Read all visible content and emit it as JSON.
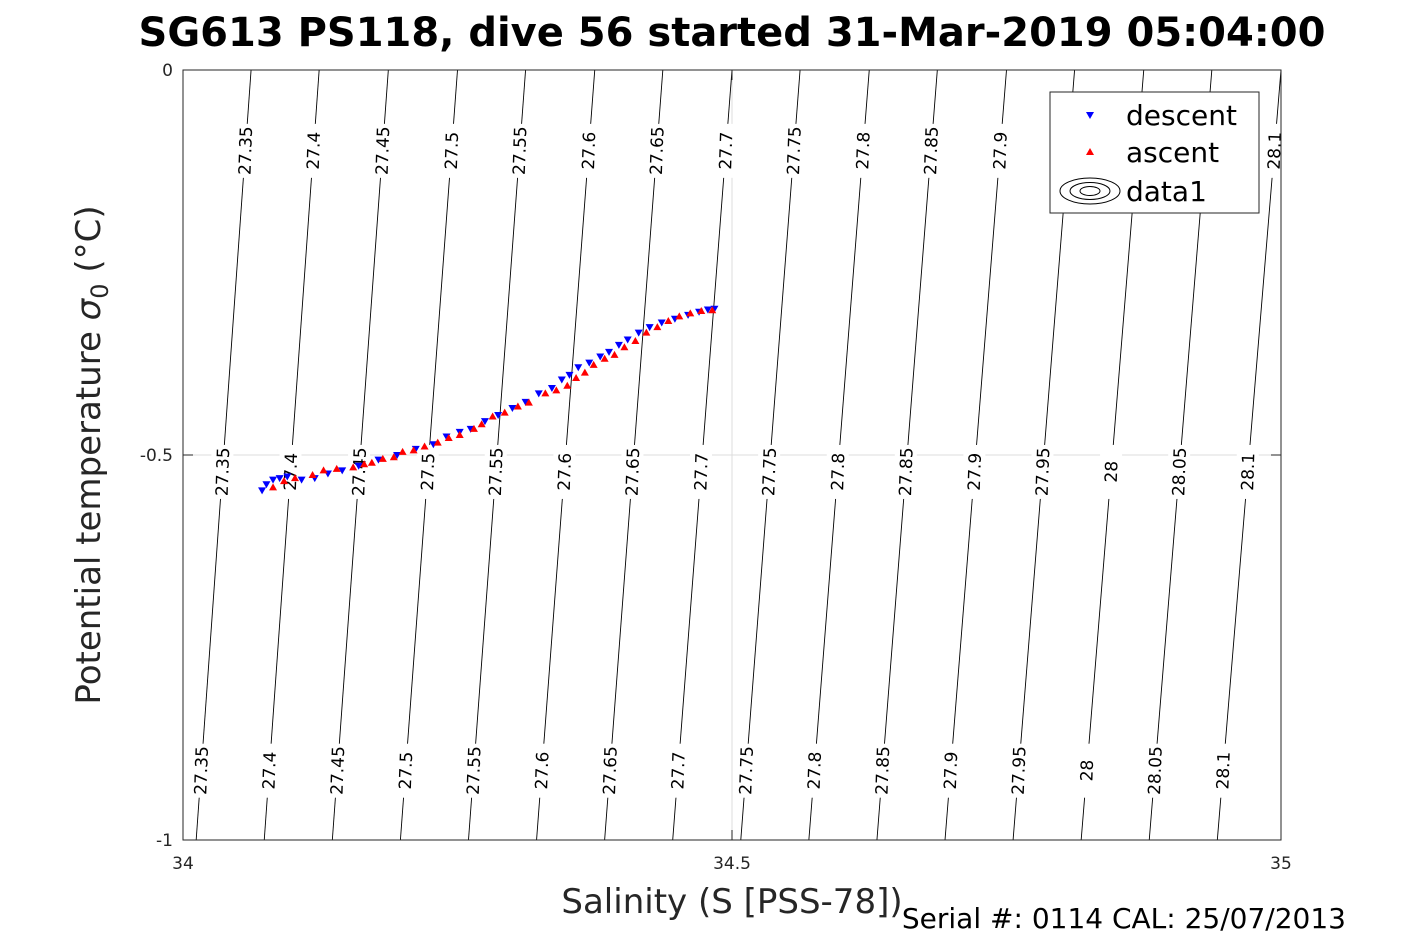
{
  "chart_data": {
    "type": "scatter",
    "title": "SG613 PS118, dive 56 started 31-Mar-2019 05:04:00",
    "xlabel": "Salinity (S [PSS-78])",
    "ylabel_main": "Potential temperature ",
    "ylabel_sym": "σ",
    "ylabel_sub": "0",
    "ylabel_unit": " (°C)",
    "xlim": [
      34,
      35
    ],
    "ylim": [
      -1,
      0
    ],
    "x_ticks": [
      34,
      34.5,
      35
    ],
    "x_tick_labels": [
      "34",
      "34.5",
      "35"
    ],
    "y_ticks": [
      0,
      -0.5,
      -1
    ],
    "y_tick_labels": [
      "0",
      "-0.5",
      "-1"
    ],
    "grid": true,
    "legend_position": "top-right",
    "legend": [
      "descent",
      "ascent",
      "data1"
    ],
    "series": [
      {
        "name": "descent",
        "color": "#0000ff",
        "marker": "triangle-down",
        "points": [
          [
            34.072,
            -0.546
          ],
          [
            34.076,
            -0.538
          ],
          [
            34.082,
            -0.532
          ],
          [
            34.088,
            -0.53
          ],
          [
            34.095,
            -0.528
          ],
          [
            34.108,
            -0.532
          ],
          [
            34.12,
            -0.53
          ],
          [
            34.132,
            -0.524
          ],
          [
            34.145,
            -0.52
          ],
          [
            34.16,
            -0.514
          ],
          [
            34.178,
            -0.506
          ],
          [
            34.195,
            -0.5
          ],
          [
            34.212,
            -0.492
          ],
          [
            34.228,
            -0.486
          ],
          [
            34.24,
            -0.476
          ],
          [
            34.252,
            -0.47
          ],
          [
            34.262,
            -0.466
          ],
          [
            34.275,
            -0.456
          ],
          [
            34.287,
            -0.448
          ],
          [
            34.3,
            -0.439
          ],
          [
            34.312,
            -0.431
          ],
          [
            34.324,
            -0.42
          ],
          [
            34.336,
            -0.413
          ],
          [
            34.345,
            -0.402
          ],
          [
            34.352,
            -0.396
          ],
          [
            34.36,
            -0.386
          ],
          [
            34.37,
            -0.38
          ],
          [
            34.38,
            -0.372
          ],
          [
            34.388,
            -0.366
          ],
          [
            34.397,
            -0.357
          ],
          [
            34.405,
            -0.35
          ],
          [
            34.415,
            -0.341
          ],
          [
            34.425,
            -0.334
          ],
          [
            34.436,
            -0.328
          ],
          [
            34.448,
            -0.323
          ],
          [
            34.46,
            -0.318
          ],
          [
            34.47,
            -0.314
          ],
          [
            34.478,
            -0.311
          ],
          [
            34.484,
            -0.31
          ]
        ]
      },
      {
        "name": "ascent",
        "color": "#ff0000",
        "marker": "triangle-up",
        "points": [
          [
            34.082,
            -0.542
          ],
          [
            34.092,
            -0.534
          ],
          [
            34.102,
            -0.53
          ],
          [
            34.118,
            -0.526
          ],
          [
            34.128,
            -0.52
          ],
          [
            34.14,
            -0.518
          ],
          [
            34.155,
            -0.516
          ],
          [
            34.165,
            -0.512
          ],
          [
            34.172,
            -0.51
          ],
          [
            34.182,
            -0.505
          ],
          [
            34.192,
            -0.503
          ],
          [
            34.2,
            -0.496
          ],
          [
            34.21,
            -0.494
          ],
          [
            34.22,
            -0.489
          ],
          [
            34.232,
            -0.484
          ],
          [
            34.242,
            -0.478
          ],
          [
            34.252,
            -0.474
          ],
          [
            34.265,
            -0.466
          ],
          [
            34.272,
            -0.46
          ],
          [
            34.282,
            -0.45
          ],
          [
            34.293,
            -0.445
          ],
          [
            34.305,
            -0.437
          ],
          [
            34.315,
            -0.432
          ],
          [
            34.33,
            -0.42
          ],
          [
            34.34,
            -0.416
          ],
          [
            34.35,
            -0.41
          ],
          [
            34.358,
            -0.4
          ],
          [
            34.366,
            -0.393
          ],
          [
            34.374,
            -0.383
          ],
          [
            34.384,
            -0.375
          ],
          [
            34.393,
            -0.37
          ],
          [
            34.402,
            -0.36
          ],
          [
            34.412,
            -0.352
          ],
          [
            34.422,
            -0.341
          ],
          [
            34.432,
            -0.334
          ],
          [
            34.442,
            -0.326
          ],
          [
            34.452,
            -0.32
          ],
          [
            34.462,
            -0.316
          ],
          [
            34.472,
            -0.313
          ],
          [
            34.482,
            -0.312
          ]
        ]
      }
    ],
    "contours": {
      "levels": [
        "27.35",
        "27.4",
        "27.45",
        "27.5",
        "27.55",
        "27.6",
        "27.65",
        "27.7",
        "27.75",
        "27.8",
        "27.85",
        "27.9",
        "27.95",
        "28",
        "28.05",
        "28.1"
      ],
      "x_at_top": [
        34.062,
        34.124,
        34.187,
        34.25,
        34.312,
        34.375,
        34.437,
        34.5,
        34.562,
        34.625,
        34.687,
        34.75,
        34.812,
        34.875,
        34.937,
        35.0
      ],
      "x_at_bottom": [
        34.012,
        34.074,
        34.136,
        34.198,
        34.26,
        34.322,
        34.384,
        34.446,
        34.508,
        34.57,
        34.632,
        34.694,
        34.756,
        34.818,
        34.88,
        34.942
      ],
      "label_rows": [
        {
          "y": -0.105,
          "labels": [
            "27.35",
            "27.4",
            "27.45",
            "27.5",
            "27.55",
            "27.6",
            "27.65",
            "27.7",
            "27.75",
            "27.8",
            "27.85",
            "27.9",
            "",
            "",
            "",
            "28.1"
          ]
        },
        {
          "y": -0.522,
          "labels": [
            "27.35",
            "27.4",
            "27.45",
            "27.5",
            "27.55",
            "27.6",
            "27.65",
            "27.7",
            "27.75",
            "27.8",
            "27.85",
            "27.9",
            "27.95",
            "28",
            "28.05",
            "28.1"
          ]
        },
        {
          "y": -0.91,
          "labels": [
            "27.35",
            "27.4",
            "27.45",
            "27.5",
            "27.55",
            "27.6",
            "27.65",
            "27.7",
            "27.75",
            "27.8",
            "27.85",
            "27.9",
            "27.95",
            "28",
            "28.05",
            "28.1"
          ]
        }
      ]
    }
  },
  "footer": {
    "serial_text": "Serial #: 0114  CAL: 25/07/2013"
  }
}
